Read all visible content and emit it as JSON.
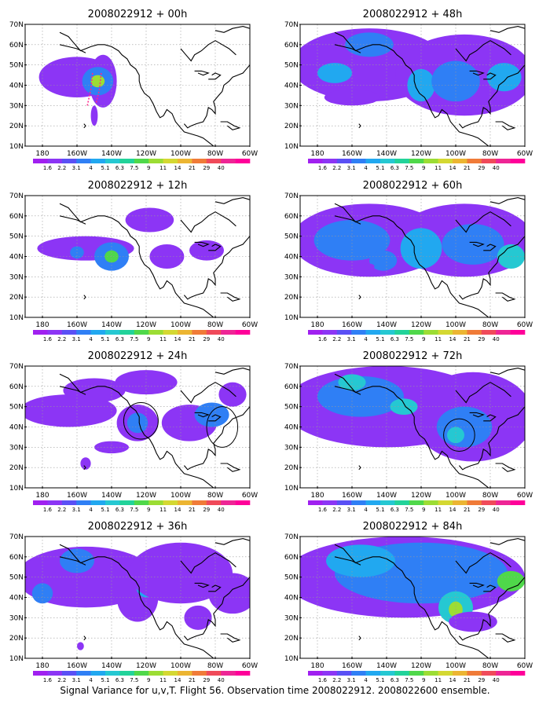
{
  "palette": [
    "#a020f0",
    "#8c35f5",
    "#5a50f5",
    "#2f7ff5",
    "#21a8f0",
    "#25c8d2",
    "#22d39a",
    "#4fd84a",
    "#9cdd34",
    "#d4d832",
    "#ecb532",
    "#f07b38",
    "#f04a5a",
    "#ee2595",
    "#ff0099"
  ],
  "colorbar_labels": [
    "1.6",
    "2.2",
    "3.1",
    "4",
    "5.1",
    "6.3",
    "7.5",
    "9",
    "11",
    "14",
    "21",
    "29",
    "40"
  ],
  "x_ticks": [
    {
      "lon": 180,
      "label": "180"
    },
    {
      "lon": -160,
      "label": "160W"
    },
    {
      "lon": -140,
      "label": "140W"
    },
    {
      "lon": -120,
      "label": "120W"
    },
    {
      "lon": -100,
      "label": "100W"
    },
    {
      "lon": -80,
      "label": "80W"
    },
    {
      "lon": -60,
      "label": "60W"
    }
  ],
  "y_ticks": [
    {
      "lat": 10,
      "label": "10N"
    },
    {
      "lat": 20,
      "label": "20N"
    },
    {
      "lat": 30,
      "label": "30N"
    },
    {
      "lat": 40,
      "label": "40N"
    },
    {
      "lat": 50,
      "label": "50N"
    },
    {
      "lat": 60,
      "label": "60N"
    },
    {
      "lat": 70,
      "label": "70N"
    }
  ],
  "panels": [
    {
      "id": "00h",
      "title": "2008022912 + 00h",
      "blobs": [
        {
          "lon": -160,
          "lat": 44,
          "rlon": 22,
          "rlat": 10,
          "level": 1
        },
        {
          "lon": -145,
          "lat": 42,
          "rlon": 8,
          "rlat": 13,
          "level": 1
        },
        {
          "lon": -148,
          "lat": 42,
          "rlon": 9,
          "rlat": 7,
          "level": 3
        },
        {
          "lon": -148,
          "lat": 42,
          "rlon": 4,
          "rlat": 3,
          "level": 8
        },
        {
          "lon": -150,
          "lat": 25,
          "rlon": 2,
          "rlat": 5,
          "level": 1
        }
      ],
      "circles": [],
      "dashed": true
    },
    {
      "id": "12h",
      "title": "2008022912 + 12h",
      "blobs": [
        {
          "lon": -155,
          "lat": 44,
          "rlon": 28,
          "rlat": 6,
          "level": 1
        },
        {
          "lon": -140,
          "lat": 40,
          "rlon": 10,
          "rlat": 7,
          "level": 3
        },
        {
          "lon": -140,
          "lat": 40,
          "rlon": 4,
          "rlat": 3,
          "level": 7
        },
        {
          "lon": -160,
          "lat": 42,
          "rlon": 4,
          "rlat": 3,
          "level": 3
        },
        {
          "lon": -118,
          "lat": 58,
          "rlon": 14,
          "rlat": 6,
          "level": 1
        },
        {
          "lon": -108,
          "lat": 40,
          "rlon": 10,
          "rlat": 6,
          "level": 1
        },
        {
          "lon": -85,
          "lat": 43,
          "rlon": 10,
          "rlat": 5,
          "level": 1
        }
      ],
      "circles": [],
      "dashed": false
    },
    {
      "id": "24h",
      "title": "2008022912 + 24h",
      "blobs": [
        {
          "lon": -165,
          "lat": 48,
          "rlon": 28,
          "rlat": 8,
          "level": 1
        },
        {
          "lon": -150,
          "lat": 58,
          "rlon": 18,
          "rlat": 6,
          "level": 1
        },
        {
          "lon": -125,
          "lat": 42,
          "rlon": 12,
          "rlat": 9,
          "level": 1
        },
        {
          "lon": -125,
          "lat": 42,
          "rlon": 6,
          "rlat": 5,
          "level": 3
        },
        {
          "lon": -120,
          "lat": 62,
          "rlon": 18,
          "rlat": 6,
          "level": 1
        },
        {
          "lon": -95,
          "lat": 42,
          "rlon": 16,
          "rlat": 9,
          "level": 1
        },
        {
          "lon": -82,
          "lat": 46,
          "rlon": 10,
          "rlat": 6,
          "level": 3
        },
        {
          "lon": -140,
          "lat": 30,
          "rlon": 10,
          "rlat": 3,
          "level": 1
        },
        {
          "lon": -155,
          "lat": 22,
          "rlon": 3,
          "rlat": 3,
          "level": 1
        },
        {
          "lon": -70,
          "lat": 56,
          "rlon": 8,
          "rlat": 6,
          "level": 1
        }
      ],
      "circles": [
        {
          "lon": -123,
          "lat": 43,
          "rlon": 10,
          "rlat": 9
        },
        {
          "lon": -76,
          "lat": 40,
          "rlon": 9,
          "rlat": 10
        }
      ],
      "dashed": false
    },
    {
      "id": "36h",
      "title": "2008022912 + 36h",
      "blobs": [
        {
          "lon": -155,
          "lat": 50,
          "rlon": 40,
          "rlat": 15,
          "level": 1
        },
        {
          "lon": -160,
          "lat": 58,
          "rlon": 10,
          "rlat": 6,
          "level": 3
        },
        {
          "lon": -125,
          "lat": 40,
          "rlon": 12,
          "rlat": 12,
          "level": 1
        },
        {
          "lon": -120,
          "lat": 46,
          "rlon": 6,
          "rlat": 6,
          "level": 4
        },
        {
          "lon": -100,
          "lat": 52,
          "rlon": 30,
          "rlat": 15,
          "level": 1
        },
        {
          "lon": -70,
          "lat": 42,
          "rlon": 14,
          "rlat": 10,
          "level": 1
        },
        {
          "lon": -90,
          "lat": 30,
          "rlon": 8,
          "rlat": 6,
          "level": 1
        },
        {
          "lon": -180,
          "lat": 42,
          "rlon": 6,
          "rlat": 5,
          "level": 3
        },
        {
          "lon": -158,
          "lat": 16,
          "rlon": 2,
          "rlat": 2,
          "level": 1
        }
      ],
      "circles": [],
      "dashed": false
    },
    {
      "id": "48h",
      "title": "2008022912 + 48h",
      "blobs": [
        {
          "lon": -150,
          "lat": 50,
          "rlon": 45,
          "rlat": 18,
          "level": 1
        },
        {
          "lon": -95,
          "lat": 45,
          "rlon": 40,
          "rlat": 20,
          "level": 1
        },
        {
          "lon": -170,
          "lat": 46,
          "rlon": 10,
          "rlat": 5,
          "level": 4
        },
        {
          "lon": -150,
          "lat": 60,
          "rlon": 14,
          "rlat": 6,
          "level": 3
        },
        {
          "lon": -120,
          "lat": 40,
          "rlon": 8,
          "rlat": 8,
          "level": 4
        },
        {
          "lon": -100,
          "lat": 42,
          "rlon": 14,
          "rlat": 10,
          "level": 3
        },
        {
          "lon": -72,
          "lat": 44,
          "rlon": 10,
          "rlat": 7,
          "level": 4
        },
        {
          "lon": -160,
          "lat": 34,
          "rlon": 16,
          "rlat": 4,
          "level": 1
        }
      ],
      "circles": [],
      "dashed": false
    },
    {
      "id": "60h",
      "title": "2008022912 + 60h",
      "blobs": [
        {
          "lon": -150,
          "lat": 48,
          "rlon": 45,
          "rlat": 18,
          "level": 1
        },
        {
          "lon": -95,
          "lat": 48,
          "rlon": 40,
          "rlat": 18,
          "level": 1
        },
        {
          "lon": -160,
          "lat": 48,
          "rlon": 22,
          "rlat": 10,
          "level": 3
        },
        {
          "lon": -120,
          "lat": 44,
          "rlon": 12,
          "rlat": 10,
          "level": 4
        },
        {
          "lon": -90,
          "lat": 46,
          "rlon": 18,
          "rlat": 10,
          "level": 3
        },
        {
          "lon": -68,
          "lat": 40,
          "rlon": 8,
          "rlat": 6,
          "level": 5
        },
        {
          "lon": -142,
          "lat": 38,
          "rlon": 8,
          "rlat": 5,
          "level": 3
        },
        {
          "lon": -150,
          "lat": 35,
          "rlon": 3,
          "rlat": 1.5,
          "level": 1
        }
      ],
      "circles": [],
      "dashed": false
    },
    {
      "id": "72h",
      "title": "2008022912 + 72h",
      "blobs": [
        {
          "lon": -140,
          "lat": 50,
          "rlon": 60,
          "rlat": 20,
          "level": 1
        },
        {
          "lon": -90,
          "lat": 45,
          "rlon": 35,
          "rlat": 22,
          "level": 1
        },
        {
          "lon": -155,
          "lat": 55,
          "rlon": 25,
          "rlat": 10,
          "level": 3
        },
        {
          "lon": -160,
          "lat": 62,
          "rlon": 8,
          "rlat": 4,
          "level": 5
        },
        {
          "lon": -130,
          "lat": 50,
          "rlon": 8,
          "rlat": 4,
          "level": 5
        },
        {
          "lon": -95,
          "lat": 40,
          "rlon": 16,
          "rlat": 10,
          "level": 3
        },
        {
          "lon": -100,
          "lat": 36,
          "rlon": 5,
          "rlat": 4,
          "level": 5
        }
      ],
      "circles": [
        {
          "lon": -98,
          "lat": 36,
          "rlon": 9,
          "rlat": 8
        }
      ],
      "dashed": false
    },
    {
      "id": "84h",
      "title": "2008022912 + 84h",
      "blobs": [
        {
          "lon": -130,
          "lat": 50,
          "rlon": 70,
          "rlat": 20,
          "level": 1
        },
        {
          "lon": -120,
          "lat": 52,
          "rlon": 50,
          "rlat": 15,
          "level": 3
        },
        {
          "lon": -155,
          "lat": 58,
          "rlon": 20,
          "rlat": 8,
          "level": 4
        },
        {
          "lon": -100,
          "lat": 35,
          "rlon": 10,
          "rlat": 8,
          "level": 5
        },
        {
          "lon": -100,
          "lat": 34,
          "rlon": 4,
          "rlat": 4,
          "level": 8
        },
        {
          "lon": -68,
          "lat": 48,
          "rlon": 8,
          "rlat": 5,
          "level": 7
        },
        {
          "lon": -90,
          "lat": 28,
          "rlon": 14,
          "rlat": 5,
          "level": 1
        }
      ],
      "circles": [],
      "dashed": false
    }
  ],
  "caption": "Signal Variance for u,v,T. Flight 56. Observation time 2008022912. 2008022600 ensemble."
}
